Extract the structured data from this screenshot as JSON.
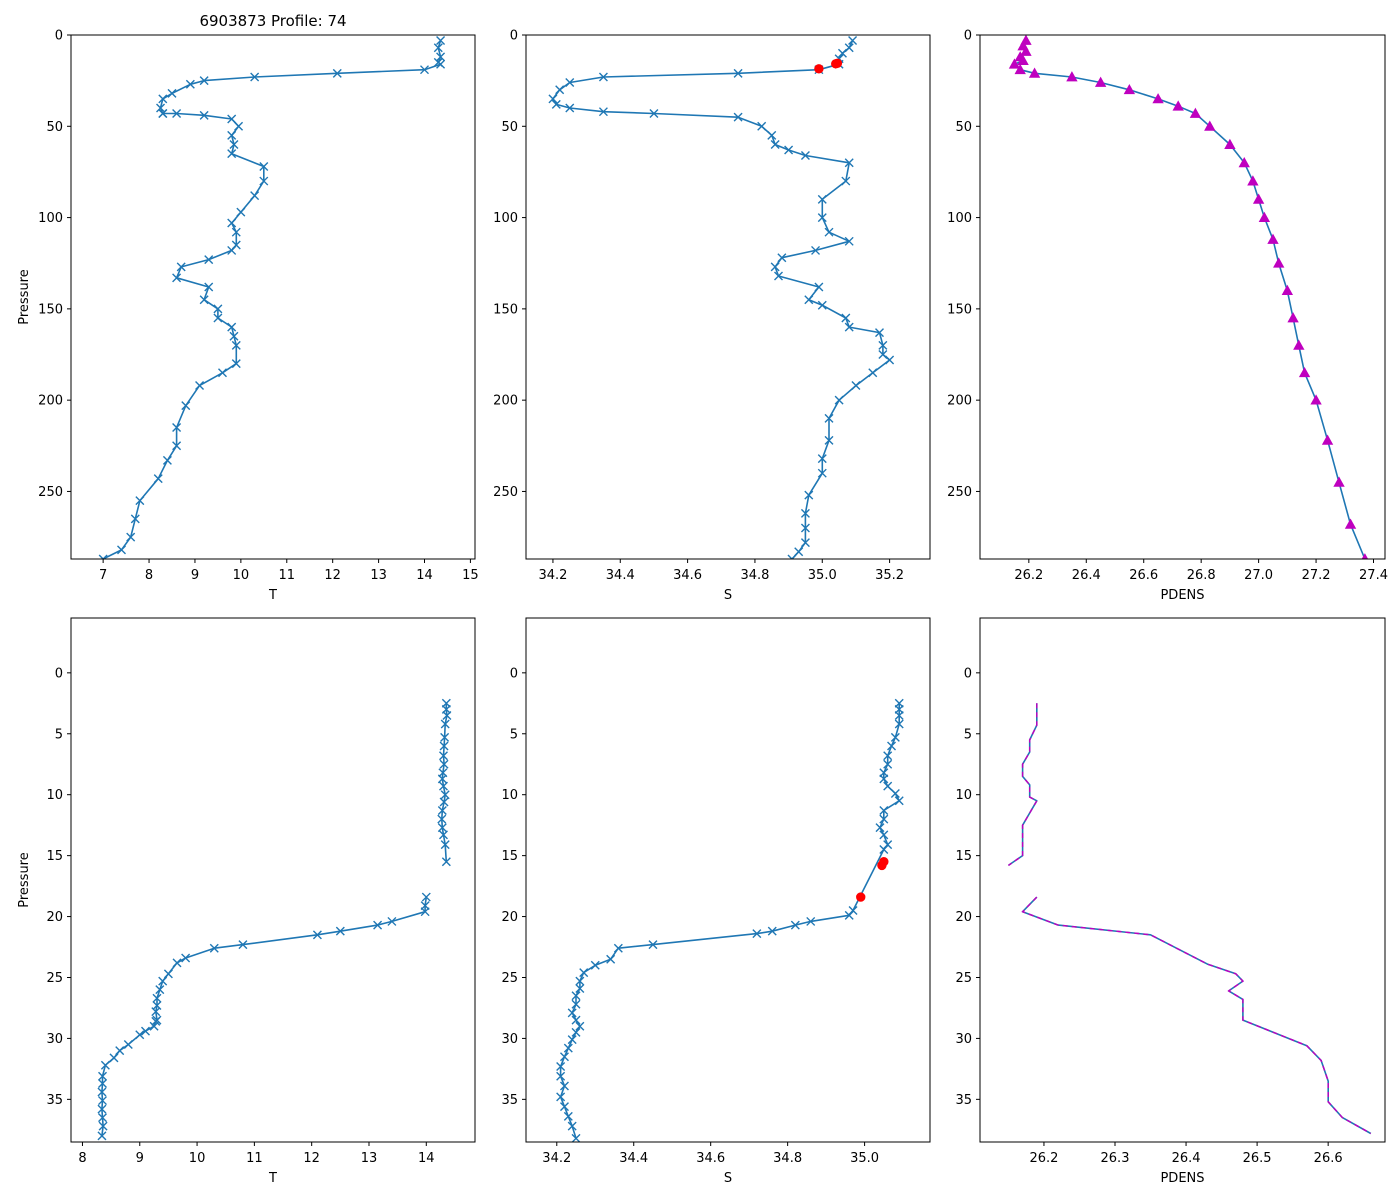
{
  "title": "6903873 Profile: 74",
  "colors": {
    "series": "#1f77b4",
    "flag": "#ff0000",
    "density": "#bf00bf"
  },
  "chart_data": [
    {
      "id": "temp-full",
      "type": "line",
      "marker": "x",
      "ylabel": "Pressure",
      "xlabel": "T",
      "xlim": [
        6.3,
        15.1
      ],
      "ylim": [
        287,
        0
      ],
      "xticks": [
        "7",
        "8",
        "9",
        "10",
        "11",
        "12",
        "13",
        "14",
        "15"
      ],
      "yticks": [
        "0",
        "50",
        "100",
        "150",
        "200",
        "250"
      ],
      "x": [
        14.35,
        14.3,
        14.35,
        14.3,
        14.35,
        14.0,
        12.1,
        10.3,
        9.2,
        8.9,
        8.5,
        8.3,
        8.25,
        8.3,
        8.3,
        8.6,
        9.2,
        9.8,
        9.95,
        9.8,
        9.85,
        9.8,
        10.5,
        10.5,
        10.3,
        10.0,
        9.8,
        9.9,
        9.9,
        9.8,
        9.3,
        8.7,
        8.6,
        9.3,
        9.2,
        9.5,
        9.5,
        9.8,
        9.85,
        9.9,
        9.9,
        9.6,
        9.1,
        8.8,
        8.6,
        8.6,
        8.4,
        8.2,
        7.8,
        7.7,
        7.6,
        7.4,
        7.0
      ],
      "y": [
        3,
        7,
        12,
        15,
        16,
        19,
        21,
        23,
        25,
        27,
        32,
        35,
        40,
        43,
        43,
        43,
        44,
        46,
        50,
        55,
        60,
        65,
        72,
        80,
        88,
        97,
        103,
        108,
        115,
        118,
        123,
        127,
        133,
        138,
        145,
        150,
        155,
        160,
        165,
        170,
        180,
        185,
        192,
        203,
        215,
        225,
        233,
        243,
        255,
        265,
        275,
        282,
        287
      ],
      "markers_every": 1
    },
    {
      "id": "sal-full",
      "type": "line",
      "marker": "x",
      "ylabel": "",
      "xlabel": "S",
      "xlim": [
        34.12,
        35.32
      ],
      "ylim": [
        287,
        0
      ],
      "xticks": [
        "34.2",
        "34.4",
        "34.6",
        "34.8",
        "35.0",
        "35.2"
      ],
      "xtick_values": [
        34.2,
        34.4,
        34.6,
        34.8,
        35.0,
        35.2
      ],
      "yticks": [
        "0",
        "50",
        "100",
        "150",
        "200",
        "250"
      ],
      "x": [
        35.09,
        35.08,
        35.06,
        35.05,
        35.05,
        34.99,
        34.75,
        34.35,
        34.25,
        34.22,
        34.2,
        34.21,
        34.25,
        34.35,
        34.5,
        34.75,
        34.82,
        34.85,
        34.86,
        34.9,
        34.95,
        35.08,
        35.07,
        35.0,
        35.0,
        35.02,
        35.08,
        34.98,
        34.88,
        34.86,
        34.87,
        34.99,
        34.96,
        35.0,
        35.07,
        35.08,
        35.17,
        35.18,
        35.18,
        35.2,
        35.15,
        35.1,
        35.05,
        35.02,
        35.02,
        35.0,
        35.0,
        34.96,
        34.95,
        34.95,
        34.95,
        34.93,
        34.91
      ],
      "y": [
        3,
        7,
        10,
        13,
        16,
        19,
        21,
        23,
        26,
        30,
        35,
        38,
        40,
        42,
        43,
        45,
        50,
        55,
        60,
        63,
        66,
        70,
        80,
        90,
        100,
        108,
        113,
        118,
        122,
        127,
        132,
        138,
        145,
        148,
        155,
        160,
        163,
        170,
        175,
        178,
        185,
        192,
        200,
        210,
        222,
        232,
        240,
        252,
        262,
        270,
        278,
        283,
        287
      ],
      "flags": [
        {
          "x": 34.99,
          "y": 18.5
        },
        {
          "x": 35.045,
          "y": 15.5
        },
        {
          "x": 35.04,
          "y": 15.8
        }
      ]
    },
    {
      "id": "pdens-full",
      "type": "line",
      "marker": "triangle",
      "ylabel": "",
      "xlabel": "PDENS",
      "xlim": [
        26.03,
        27.44
      ],
      "ylim": [
        287,
        0
      ],
      "xticks": [
        "26.2",
        "26.4",
        "26.6",
        "26.8",
        "27.0",
        "27.2",
        "27.4"
      ],
      "xtick_values": [
        26.2,
        26.4,
        26.6,
        26.8,
        27.0,
        27.2,
        27.4
      ],
      "yticks": [
        "0",
        "50",
        "100",
        "150",
        "200",
        "250"
      ],
      "x": [
        26.19,
        26.18,
        26.19,
        26.17,
        26.18,
        26.15,
        26.17,
        26.22,
        26.35,
        26.45,
        26.55,
        26.65,
        26.72,
        26.78,
        26.83,
        26.9,
        26.95,
        26.98,
        27.0,
        27.02,
        27.05,
        27.07,
        27.1,
        27.12,
        27.14,
        27.16,
        27.2,
        27.24,
        27.28,
        27.32,
        27.37
      ],
      "y": [
        3,
        6,
        9,
        12,
        14,
        16,
        19,
        21,
        23,
        26,
        30,
        35,
        39,
        43,
        50,
        60,
        70,
        80,
        90,
        100,
        112,
        125,
        140,
        155,
        170,
        185,
        200,
        222,
        245,
        268,
        287
      ]
    },
    {
      "id": "temp-zoom",
      "type": "line",
      "marker": "x",
      "ylabel": "Pressure",
      "xlabel": "T",
      "xlim": [
        7.8,
        14.85
      ],
      "ylim": [
        38.5,
        -4.5
      ],
      "xticks": [
        "8",
        "9",
        "10",
        "11",
        "12",
        "13",
        "14"
      ],
      "xtick_values": [
        8,
        9,
        10,
        11,
        12,
        13,
        14
      ],
      "yticks": [
        "0",
        "5",
        "10",
        "15",
        "20",
        "25",
        "30",
        "35"
      ],
      "ytick_values": [
        0,
        5,
        10,
        15,
        20,
        25,
        30,
        35
      ],
      "x": [
        14.35,
        14.35,
        14.36,
        14.33,
        14.32,
        14.31,
        14.3,
        14.31,
        14.29,
        14.28,
        14.3,
        14.33,
        14.31,
        14.28,
        14.27,
        14.28,
        14.3,
        14.33,
        14.35,
        14.0,
        13.98,
        13.98,
        13.4,
        13.15,
        12.5,
        12.1,
        10.8,
        10.3,
        9.8,
        9.65,
        9.5,
        9.4,
        9.35,
        9.3,
        9.3,
        9.28,
        9.3,
        9.28,
        9.25,
        9.1,
        9.0,
        8.8,
        8.65,
        8.55,
        8.4,
        8.35,
        8.35,
        8.34,
        8.35,
        8.34,
        8.35,
        8.36,
        8.34
      ],
      "y": [
        2.5,
        3.0,
        3.5,
        4.2,
        5.3,
        6.0,
        6.8,
        7.5,
        8.2,
        8.7,
        9.3,
        10.0,
        10.6,
        11.3,
        12.0,
        12.7,
        13.3,
        14.1,
        15.5,
        18.4,
        19.1,
        19.6,
        20.4,
        20.7,
        21.2,
        21.5,
        22.3,
        22.6,
        23.4,
        23.8,
        24.7,
        25.3,
        26.0,
        26.7,
        27.3,
        27.8,
        28.5,
        28.6,
        29.0,
        29.4,
        29.7,
        30.5,
        31.0,
        31.6,
        32.2,
        33.1,
        33.7,
        34.4,
        35.1,
        35.8,
        36.5,
        37.2,
        38.0
      ],
      "segments_break_after": [
        18
      ]
    },
    {
      "id": "sal-zoom",
      "type": "line",
      "marker": "x",
      "ylabel": "",
      "xlabel": "S",
      "xlim": [
        34.12,
        35.17
      ],
      "ylim": [
        38.5,
        -4.5
      ],
      "xticks": [
        "34.2",
        "34.4",
        "34.6",
        "34.8",
        "35.0"
      ],
      "xtick_values": [
        34.2,
        34.4,
        34.6,
        34.8,
        35.0
      ],
      "yticks": [
        "0",
        "5",
        "10",
        "15",
        "20",
        "25",
        "30",
        "35"
      ],
      "ytick_values": [
        0,
        5,
        10,
        15,
        20,
        25,
        30,
        35
      ],
      "x": [
        35.09,
        35.09,
        35.09,
        35.09,
        35.08,
        35.07,
        35.06,
        35.06,
        35.05,
        35.05,
        35.06,
        35.08,
        35.09,
        35.05,
        35.05,
        35.04,
        35.05,
        35.06,
        35.05,
        34.97,
        34.96,
        34.86,
        34.82,
        34.76,
        34.72,
        34.45,
        34.36,
        34.34,
        34.3,
        34.27,
        34.26,
        34.26,
        34.25,
        34.25,
        34.24,
        34.25,
        34.26,
        34.25,
        34.24,
        34.23,
        34.22,
        34.21,
        34.21,
        34.22,
        34.21,
        34.22,
        34.23,
        34.24,
        34.25
      ],
      "y": [
        2.5,
        3.0,
        3.5,
        4.2,
        5.3,
        6.0,
        6.8,
        7.5,
        8.2,
        8.7,
        9.3,
        9.9,
        10.5,
        11.3,
        12.0,
        12.7,
        13.3,
        14.1,
        14.5,
        19.5,
        19.9,
        20.4,
        20.7,
        21.2,
        21.4,
        22.3,
        22.6,
        23.5,
        24.0,
        24.6,
        25.3,
        25.9,
        26.5,
        27.2,
        27.9,
        28.5,
        29.0,
        29.5,
        30.1,
        30.8,
        31.5,
        32.3,
        33.1,
        33.9,
        34.8,
        35.6,
        36.4,
        37.2,
        38.2
      ],
      "flags": [
        {
          "x": 34.99,
          "y": 18.4
        },
        {
          "x": 35.05,
          "y": 15.5
        },
        {
          "x": 35.045,
          "y": 15.8
        }
      ]
    },
    {
      "id": "pdens-zoom",
      "type": "line",
      "marker": "none",
      "ylabel": "",
      "xlabel": "PDENS",
      "xlim": [
        26.11,
        26.68
      ],
      "ylim": [
        38.5,
        -4.5
      ],
      "xticks": [
        "26.2",
        "26.3",
        "26.4",
        "26.5",
        "26.6"
      ],
      "xtick_values": [
        26.2,
        26.3,
        26.4,
        26.5,
        26.6
      ],
      "yticks": [
        "0",
        "5",
        "10",
        "15",
        "20",
        "25",
        "30",
        "35"
      ],
      "ytick_values": [
        0,
        5,
        10,
        15,
        20,
        25,
        30,
        35
      ],
      "x": [
        26.19,
        26.19,
        26.19,
        26.18,
        26.18,
        26.17,
        26.17,
        26.18,
        26.18,
        26.19,
        26.18,
        26.17,
        26.17,
        26.17,
        26.17,
        26.15,
        26.19,
        26.17,
        26.22,
        26.35,
        26.43,
        26.47,
        26.48,
        26.46,
        26.48,
        26.48,
        26.57,
        26.59,
        26.6,
        26.6,
        26.62,
        26.66
      ],
      "y": [
        2.5,
        3.3,
        4.3,
        5.5,
        6.5,
        7.5,
        8.5,
        9.2,
        10.2,
        10.5,
        11.5,
        12.5,
        13.5,
        14.5,
        15.0,
        15.8,
        18.4,
        19.6,
        20.7,
        21.5,
        23.9,
        24.7,
        25.3,
        26.1,
        26.8,
        28.5,
        30.6,
        31.8,
        33.5,
        35.2,
        36.5,
        37.8
      ],
      "segments_break_after": [
        15
      ]
    }
  ]
}
